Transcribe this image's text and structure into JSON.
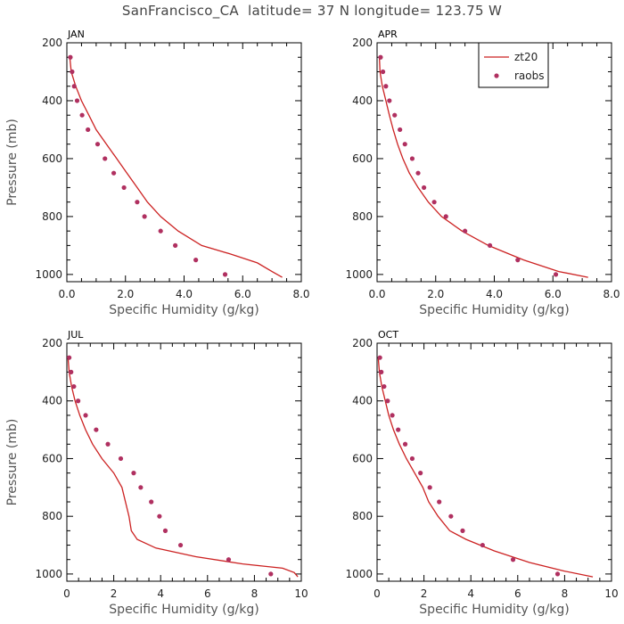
{
  "title": "SanFrancisco_CA  latitude= 37 N longitude= 123.75 W",
  "colors": {
    "line": "#cc2222",
    "dots": "#b03060",
    "axis": "#000000"
  },
  "legend": {
    "line_label": "zt20",
    "dots_label": "raobs",
    "placement": "top-right of APR panel"
  },
  "chart_data": [
    {
      "type": "line",
      "panel": "JAN",
      "xlabel": "Specific Humidity (g/kg)",
      "ylabel": "Pressure (mb)",
      "xlim": [
        0,
        8
      ],
      "ylim": [
        200,
        1025
      ],
      "xticks": [
        0,
        2,
        4,
        6,
        8
      ],
      "xticklabels": [
        "0.0",
        "2.0",
        "4.0",
        "6.0",
        "8.0"
      ],
      "yticks": [
        200,
        400,
        600,
        800,
        1000
      ],
      "series": [
        {
          "name": "zt20",
          "style": "line",
          "x": [
            0.1,
            0.15,
            0.3,
            0.5,
            0.75,
            1.0,
            1.35,
            1.7,
            2.05,
            2.4,
            2.75,
            3.2,
            3.8,
            4.6,
            5.6,
            6.5,
            7.0,
            7.35
          ],
          "y": [
            250,
            300,
            350,
            400,
            450,
            500,
            550,
            600,
            650,
            700,
            750,
            800,
            850,
            900,
            930,
            960,
            990,
            1010
          ]
        },
        {
          "name": "raobs",
          "style": "dots",
          "x": [
            0.12,
            0.18,
            0.25,
            0.35,
            0.52,
            0.72,
            1.05,
            1.3,
            1.6,
            1.95,
            2.4,
            2.65,
            3.2,
            3.7,
            4.4,
            5.4
          ],
          "y": [
            250,
            300,
            350,
            400,
            450,
            500,
            550,
            600,
            650,
            700,
            750,
            800,
            850,
            900,
            950,
            1000
          ]
        }
      ]
    },
    {
      "type": "line",
      "panel": "APR",
      "xlabel": "Specific Humidity (g/kg)",
      "ylabel": "",
      "xlim": [
        0,
        8
      ],
      "ylim": [
        200,
        1025
      ],
      "xticks": [
        0,
        2,
        4,
        6,
        8
      ],
      "xticklabels": [
        "0.0",
        "2.0",
        "4.0",
        "6.0",
        "8.0"
      ],
      "yticks": [
        200,
        400,
        600,
        800,
        1000
      ],
      "series": [
        {
          "name": "zt20",
          "style": "line",
          "x": [
            0.08,
            0.1,
            0.18,
            0.3,
            0.42,
            0.55,
            0.7,
            0.88,
            1.1,
            1.4,
            1.75,
            2.2,
            2.9,
            3.8,
            5.0,
            6.2,
            7.2
          ],
          "y": [
            250,
            300,
            350,
            400,
            450,
            500,
            550,
            600,
            650,
            700,
            750,
            800,
            850,
            900,
            950,
            990,
            1010
          ]
        },
        {
          "name": "raobs",
          "style": "dots",
          "x": [
            0.12,
            0.2,
            0.3,
            0.42,
            0.6,
            0.78,
            0.95,
            1.2,
            1.4,
            1.6,
            1.95,
            2.35,
            3.0,
            3.85,
            4.8,
            6.1
          ],
          "y": [
            250,
            300,
            350,
            400,
            450,
            500,
            550,
            600,
            650,
            700,
            750,
            800,
            850,
            900,
            950,
            1000
          ]
        }
      ]
    },
    {
      "type": "line",
      "panel": "JUL",
      "xlabel": "Specific Humidity (g/kg)",
      "ylabel": "Pressure (mb)",
      "xlim": [
        0,
        10
      ],
      "ylim": [
        200,
        1025
      ],
      "xticks": [
        0,
        2,
        4,
        6,
        8,
        10
      ],
      "xticklabels": [
        "0",
        "2",
        "4",
        "6",
        "8",
        "10"
      ],
      "yticks": [
        200,
        400,
        600,
        800,
        1000
      ],
      "series": [
        {
          "name": "zt20",
          "style": "line",
          "x": [
            0.05,
            0.1,
            0.2,
            0.35,
            0.55,
            0.8,
            1.1,
            1.5,
            2.0,
            2.35,
            2.65,
            2.75,
            3.0,
            3.8,
            5.5,
            7.5,
            9.2,
            9.7,
            9.85
          ],
          "y": [
            250,
            300,
            350,
            400,
            450,
            500,
            550,
            600,
            650,
            700,
            800,
            850,
            880,
            910,
            940,
            965,
            980,
            995,
            1010
          ]
        },
        {
          "name": "raobs",
          "style": "dots",
          "x": [
            0.1,
            0.18,
            0.3,
            0.48,
            0.8,
            1.25,
            1.75,
            2.3,
            2.85,
            3.15,
            3.6,
            3.95,
            4.2,
            4.85,
            6.9,
            8.7
          ],
          "y": [
            250,
            300,
            350,
            400,
            450,
            500,
            550,
            600,
            650,
            700,
            750,
            800,
            850,
            900,
            950,
            1000
          ]
        }
      ]
    },
    {
      "type": "line",
      "panel": "OCT",
      "xlabel": "Specific Humidity (g/kg)",
      "ylabel": "",
      "xlim": [
        0,
        10
      ],
      "ylim": [
        200,
        1025
      ],
      "xticks": [
        0,
        2,
        4,
        6,
        8,
        10
      ],
      "xticklabels": [
        "0",
        "2",
        "4",
        "6",
        "8",
        "10"
      ],
      "yticks": [
        200,
        400,
        600,
        800,
        1000
      ],
      "series": [
        {
          "name": "zt20",
          "style": "line",
          "x": [
            0.05,
            0.1,
            0.2,
            0.35,
            0.5,
            0.7,
            0.95,
            1.25,
            1.6,
            1.95,
            2.2,
            2.6,
            3.1,
            3.8,
            5.0,
            6.5,
            8.0,
            9.2
          ],
          "y": [
            250,
            300,
            350,
            400,
            450,
            500,
            550,
            600,
            650,
            700,
            750,
            800,
            850,
            880,
            920,
            960,
            990,
            1010
          ]
        },
        {
          "name": "raobs",
          "style": "dots",
          "x": [
            0.12,
            0.18,
            0.3,
            0.45,
            0.65,
            0.9,
            1.2,
            1.5,
            1.85,
            2.25,
            2.65,
            3.15,
            3.65,
            4.5,
            5.8,
            7.7
          ],
          "y": [
            250,
            300,
            350,
            400,
            450,
            500,
            550,
            600,
            650,
            700,
            750,
            800,
            850,
            900,
            950,
            1000
          ]
        }
      ]
    }
  ]
}
